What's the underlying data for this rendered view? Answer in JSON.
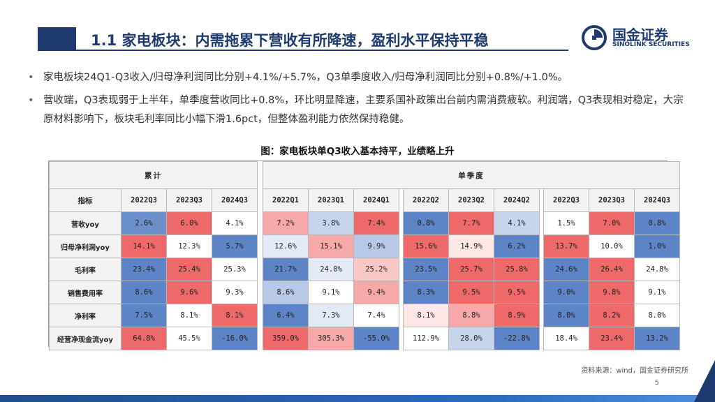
{
  "header": {
    "title": "1.1 家电板块：内需拖累下营收有所降速，盈利水平保持平稳",
    "logo_cn": "国金证券",
    "logo_en": "SINOLINK SECURITIES"
  },
  "bullets": [
    "家电板块24Q1-Q3收入/归母净利润同比分别+4.1%/+5.7%，Q3单季度收入/归母净利润同比分别+0.8%/+1.0%。",
    "营收端，Q3表现弱于上半年，单季度营收同比+0.8%，环比明显降速，主要系国补政策出台前内需消费疲软。利润端，Q3表现相对稳定，大宗原材料影响下，板块毛利率同比小幅下滑1.6pct，但整体盈利能力依然保持稳健。"
  ],
  "figure": {
    "caption": "图：家电板块单Q3收入基本持平，业绩略上升"
  },
  "table": {
    "group_cumulative": "累计",
    "group_quarter": "单季度",
    "index_header": "指标",
    "cumulative_cols": [
      "2022Q3",
      "2023Q3",
      "2024Q3"
    ],
    "quarter_groups": [
      [
        "2022Q1",
        "2023Q1",
        "2024Q1"
      ],
      [
        "2022Q2",
        "2023Q2",
        "2024Q2"
      ],
      [
        "2022Q3",
        "2023Q3",
        "2024Q3"
      ]
    ],
    "rows": [
      {
        "label": "营收yoy",
        "cumulative": [
          {
            "v": "2.6%",
            "c": "#6a8fcb"
          },
          {
            "v": "6.0%",
            "c": "#ee6a6a"
          },
          {
            "v": "4.1%",
            "c": "#ffffff"
          }
        ],
        "quarters": [
          [
            {
              "v": "7.2%",
              "c": "#f7a8a8"
            },
            {
              "v": "3.8%",
              "c": "#c6d4ec"
            },
            {
              "v": "7.4%",
              "c": "#ee6a6a"
            }
          ],
          [
            {
              "v": "0.8%",
              "c": "#5d84c7"
            },
            {
              "v": "7.7%",
              "c": "#ee6a6a"
            },
            {
              "v": "4.1%",
              "c": "#c6d4ec"
            }
          ],
          [
            {
              "v": "1.5%",
              "c": "#ffffff"
            },
            {
              "v": "7.0%",
              "c": "#ee6a6a"
            },
            {
              "v": "0.8%",
              "c": "#5d84c7"
            }
          ]
        ]
      },
      {
        "label": "归母净利润yoy",
        "cumulative": [
          {
            "v": "14.1%",
            "c": "#ee6a6a"
          },
          {
            "v": "12.3%",
            "c": "#ffffff"
          },
          {
            "v": "5.7%",
            "c": "#5d84c7"
          }
        ],
        "quarters": [
          [
            {
              "v": "12.6%",
              "c": "#e3eaf6"
            },
            {
              "v": "15.1%",
              "c": "#f7a8a8"
            },
            {
              "v": "9.9%",
              "c": "#b8c9e8"
            }
          ],
          [
            {
              "v": "15.6%",
              "c": "#ee6a6a"
            },
            {
              "v": "14.9%",
              "c": "#fde7e7"
            },
            {
              "v": "6.2%",
              "c": "#5d84c7"
            }
          ],
          [
            {
              "v": "13.7%",
              "c": "#ee6a6a"
            },
            {
              "v": "10.0%",
              "c": "#ffffff"
            },
            {
              "v": "1.0%",
              "c": "#5d84c7"
            }
          ]
        ]
      },
      {
        "label": "毛利率",
        "cumulative": [
          {
            "v": "23.4%",
            "c": "#5d84c7"
          },
          {
            "v": "25.4%",
            "c": "#ee6a6a"
          },
          {
            "v": "25.3%",
            "c": "#ffffff"
          }
        ],
        "quarters": [
          [
            {
              "v": "21.7%",
              "c": "#5d84c7"
            },
            {
              "v": "24.0%",
              "c": "#e3eaf6"
            },
            {
              "v": "25.2%",
              "c": "#f9c6c6"
            }
          ],
          [
            {
              "v": "23.5%",
              "c": "#5d84c7"
            },
            {
              "v": "25.7%",
              "c": "#ee6a6a"
            },
            {
              "v": "25.8%",
              "c": "#ee6a6a"
            }
          ],
          [
            {
              "v": "24.6%",
              "c": "#5d84c7"
            },
            {
              "v": "26.4%",
              "c": "#ee6a6a"
            },
            {
              "v": "24.8%",
              "c": "#ffffff"
            }
          ]
        ]
      },
      {
        "label": "销售费用率",
        "cumulative": [
          {
            "v": "8.6%",
            "c": "#5d84c7"
          },
          {
            "v": "9.6%",
            "c": "#ee6a6a"
          },
          {
            "v": "9.3%",
            "c": "#ffffff"
          }
        ],
        "quarters": [
          [
            {
              "v": "8.6%",
              "c": "#b8c9e8"
            },
            {
              "v": "9.1%",
              "c": "#ffffff"
            },
            {
              "v": "9.4%",
              "c": "#f7a8a8"
            }
          ],
          [
            {
              "v": "8.3%",
              "c": "#5d84c7"
            },
            {
              "v": "9.5%",
              "c": "#ee6a6a"
            },
            {
              "v": "9.5%",
              "c": "#ee6a6a"
            }
          ],
          [
            {
              "v": "9.0%",
              "c": "#5d84c7"
            },
            {
              "v": "9.8%",
              "c": "#ee6a6a"
            },
            {
              "v": "9.1%",
              "c": "#ffffff"
            }
          ]
        ]
      },
      {
        "label": "净利率",
        "cumulative": [
          {
            "v": "7.5%",
            "c": "#5d84c7"
          },
          {
            "v": "8.1%",
            "c": "#ffffff"
          },
          {
            "v": "8.1%",
            "c": "#ee6a6a"
          }
        ],
        "quarters": [
          [
            {
              "v": "6.4%",
              "c": "#5d84c7"
            },
            {
              "v": "7.3%",
              "c": "#e3eaf6"
            },
            {
              "v": "7.4%",
              "c": "#ffffff"
            }
          ],
          [
            {
              "v": "8.1%",
              "c": "#fde7e7"
            },
            {
              "v": "8.8%",
              "c": "#f7a8a8"
            },
            {
              "v": "8.9%",
              "c": "#ee6a6a"
            }
          ],
          [
            {
              "v": "8.0%",
              "c": "#5d84c7"
            },
            {
              "v": "8.2%",
              "c": "#ee6a6a"
            },
            {
              "v": "8.0%",
              "c": "#ffffff"
            }
          ]
        ]
      },
      {
        "label": "经营净现金流yoy",
        "cumulative": [
          {
            "v": "64.8%",
            "c": "#ee6a6a"
          },
          {
            "v": "45.5%",
            "c": "#ffffff"
          },
          {
            "v": "-16.0%",
            "c": "#5d84c7"
          }
        ],
        "quarters": [
          [
            {
              "v": "359.0%",
              "c": "#ee6a6a"
            },
            {
              "v": "305.3%",
              "c": "#f7a8a8"
            },
            {
              "v": "-55.0%",
              "c": "#5d84c7"
            }
          ],
          [
            {
              "v": "112.9%",
              "c": "#ffffff"
            },
            {
              "v": "28.0%",
              "c": "#c6d4ec"
            },
            {
              "v": "-22.8%",
              "c": "#5d84c7"
            }
          ],
          [
            {
              "v": "18.4%",
              "c": "#ffffff"
            },
            {
              "v": "23.4%",
              "c": "#ee6a6a"
            },
            {
              "v": "13.2%",
              "c": "#5d84c7"
            }
          ]
        ]
      }
    ]
  },
  "footer": {
    "source": "资料来源：wind，国金证券研究所",
    "page": "5"
  },
  "colors": {
    "brand": "#1f3a6e",
    "header_fill": "#f2f2f2"
  }
}
